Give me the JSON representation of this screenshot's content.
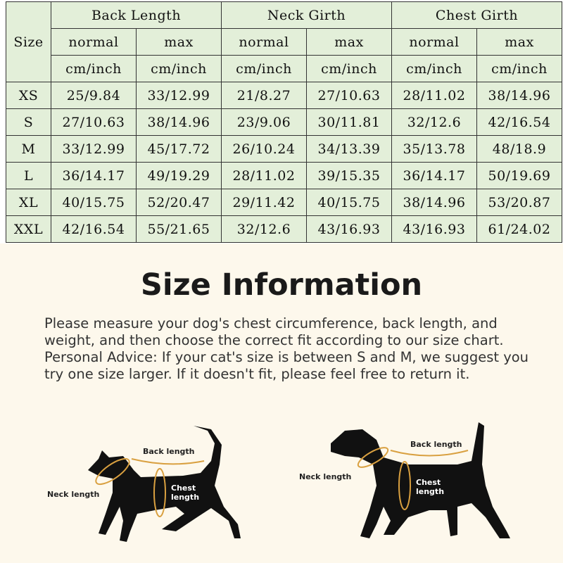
{
  "table": {
    "size_header": "Size",
    "groups": [
      "Back Length",
      "Neck Girth",
      "Chest Girth"
    ],
    "subheaders": [
      "normal",
      "max",
      "normal",
      "max",
      "normal",
      "max"
    ],
    "unit": "cm/inch",
    "rows": [
      {
        "size": "XS",
        "values": [
          "25/9.84",
          "33/12.99",
          "21/8.27",
          "27/10.63",
          "28/11.02",
          "38/14.96"
        ]
      },
      {
        "size": "S",
        "values": [
          "27/10.63",
          "38/14.96",
          "23/9.06",
          "30/11.81",
          "32/12.6",
          "42/16.54"
        ]
      },
      {
        "size": "M",
        "values": [
          "33/12.99",
          "45/17.72",
          "26/10.24",
          "34/13.39",
          "35/13.78",
          "48/18.9"
        ]
      },
      {
        "size": "L",
        "values": [
          "36/14.17",
          "49/19.29",
          "28/11.02",
          "39/15.35",
          "36/14.17",
          "50/19.69"
        ]
      },
      {
        "size": "XL",
        "values": [
          "40/15.75",
          "52/20.47",
          "29/11.42",
          "40/15.75",
          "38/14.96",
          "53/20.87"
        ]
      },
      {
        "size": "XXL",
        "values": [
          "42/16.54",
          "55/21.65",
          "32/12.6",
          "43/16.93",
          "43/16.93",
          "61/24.02"
        ]
      }
    ]
  },
  "info": {
    "title": "Size Information",
    "description": "Please measure your dog's chest circumference, back length, and weight, and then choose the correct fit according to our size chart. Personal Advice: If your cat's size is between S and M, we suggest you try one size larger. If it doesn't fit, please feel free to return it."
  },
  "cat": {
    "back": "Back length",
    "neck": "Neck length",
    "chest1": "Chest",
    "chest2": "length"
  },
  "dog": {
    "back": "Back length",
    "neck": "Neck length",
    "chest1": "Chest",
    "chest2": "length"
  },
  "colors": {
    "table_bg": "#e3efd9",
    "page_bg": "#fdf8ec",
    "measure": "#d9a040"
  }
}
